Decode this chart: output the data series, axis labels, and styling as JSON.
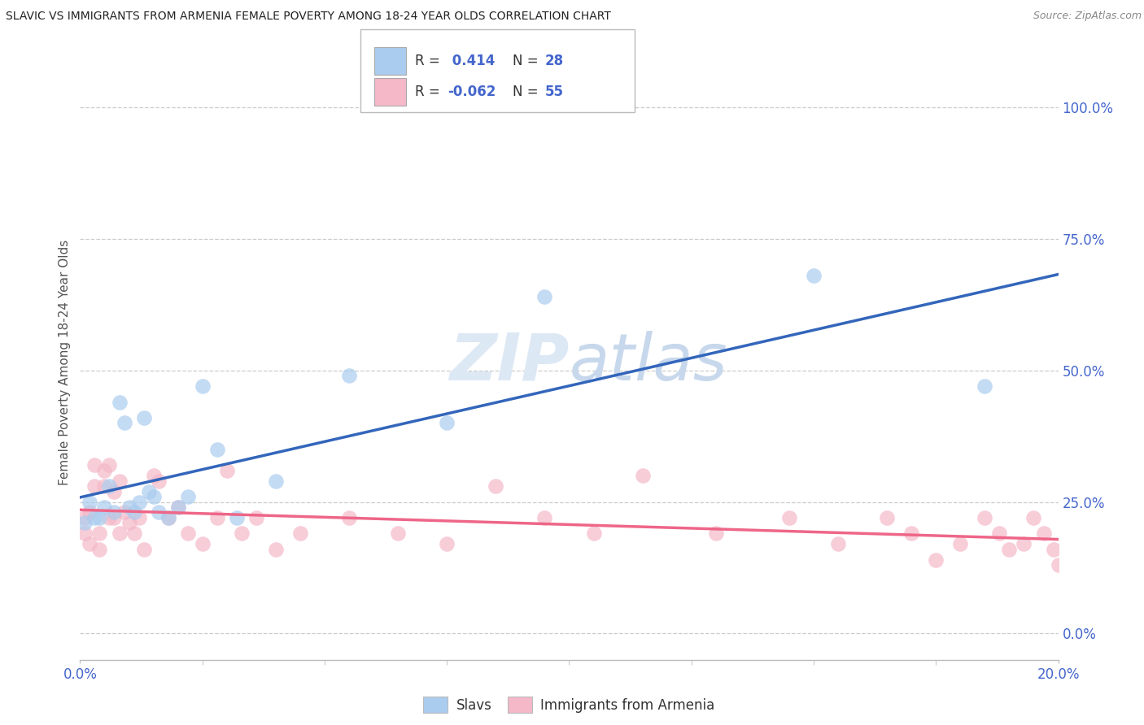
{
  "title": "SLAVIC VS IMMIGRANTS FROM ARMENIA FEMALE POVERTY AMONG 18-24 YEAR OLDS CORRELATION CHART",
  "source": "Source: ZipAtlas.com",
  "ylabel": "Female Poverty Among 18-24 Year Olds",
  "ytick_vals": [
    0.0,
    0.25,
    0.5,
    0.75,
    1.0
  ],
  "ytick_labels": [
    "0.0%",
    "25.0%",
    "50.0%",
    "75.0%",
    "100.0%"
  ],
  "xtick_left_label": "0.0%",
  "xtick_right_label": "20.0%",
  "xlim": [
    0.0,
    0.2
  ],
  "ylim": [
    -0.05,
    1.08
  ],
  "slavic_R": 0.414,
  "slavic_N": 28,
  "armenia_R": -0.062,
  "armenia_N": 55,
  "slavic_scatter_color": "#aaccee",
  "armenia_scatter_color": "#f4b8c8",
  "slavic_line_color": "#3366bb",
  "armenia_line_color": "#ee6688",
  "legend_text_color": "#4466cc",
  "legend_label_slavs": "Slavs",
  "legend_label_armenia": "Immigrants from Armenia",
  "slavic_x": [
    0.001,
    0.002,
    0.003,
    0.004,
    0.005,
    0.006,
    0.007,
    0.008,
    0.009,
    0.01,
    0.011,
    0.012,
    0.013,
    0.014,
    0.015,
    0.016,
    0.018,
    0.02,
    0.022,
    0.025,
    0.028,
    0.032,
    0.04,
    0.055,
    0.075,
    0.095,
    0.15,
    0.185
  ],
  "slavic_y": [
    0.21,
    0.25,
    0.22,
    0.22,
    0.24,
    0.28,
    0.23,
    0.44,
    0.4,
    0.24,
    0.23,
    0.25,
    0.41,
    0.27,
    0.26,
    0.23,
    0.22,
    0.24,
    0.26,
    0.47,
    0.35,
    0.22,
    0.29,
    0.49,
    0.4,
    0.64,
    0.68,
    0.47
  ],
  "armenia_x": [
    0.001,
    0.001,
    0.002,
    0.002,
    0.003,
    0.003,
    0.004,
    0.004,
    0.005,
    0.005,
    0.006,
    0.006,
    0.007,
    0.007,
    0.008,
    0.008,
    0.009,
    0.01,
    0.011,
    0.012,
    0.013,
    0.015,
    0.016,
    0.018,
    0.02,
    0.022,
    0.025,
    0.028,
    0.03,
    0.033,
    0.036,
    0.04,
    0.045,
    0.055,
    0.065,
    0.075,
    0.085,
    0.095,
    0.105,
    0.115,
    0.13,
    0.145,
    0.155,
    0.165,
    0.17,
    0.175,
    0.18,
    0.185,
    0.188,
    0.19,
    0.193,
    0.195,
    0.197,
    0.199,
    0.2
  ],
  "armenia_y": [
    0.19,
    0.22,
    0.17,
    0.23,
    0.28,
    0.32,
    0.16,
    0.19,
    0.28,
    0.31,
    0.32,
    0.22,
    0.22,
    0.27,
    0.29,
    0.19,
    0.23,
    0.21,
    0.19,
    0.22,
    0.16,
    0.3,
    0.29,
    0.22,
    0.24,
    0.19,
    0.17,
    0.22,
    0.31,
    0.19,
    0.22,
    0.16,
    0.19,
    0.22,
    0.19,
    0.17,
    0.28,
    0.22,
    0.19,
    0.3,
    0.19,
    0.22,
    0.17,
    0.22,
    0.19,
    0.14,
    0.17,
    0.22,
    0.19,
    0.16,
    0.17,
    0.22,
    0.19,
    0.16,
    0.13
  ]
}
